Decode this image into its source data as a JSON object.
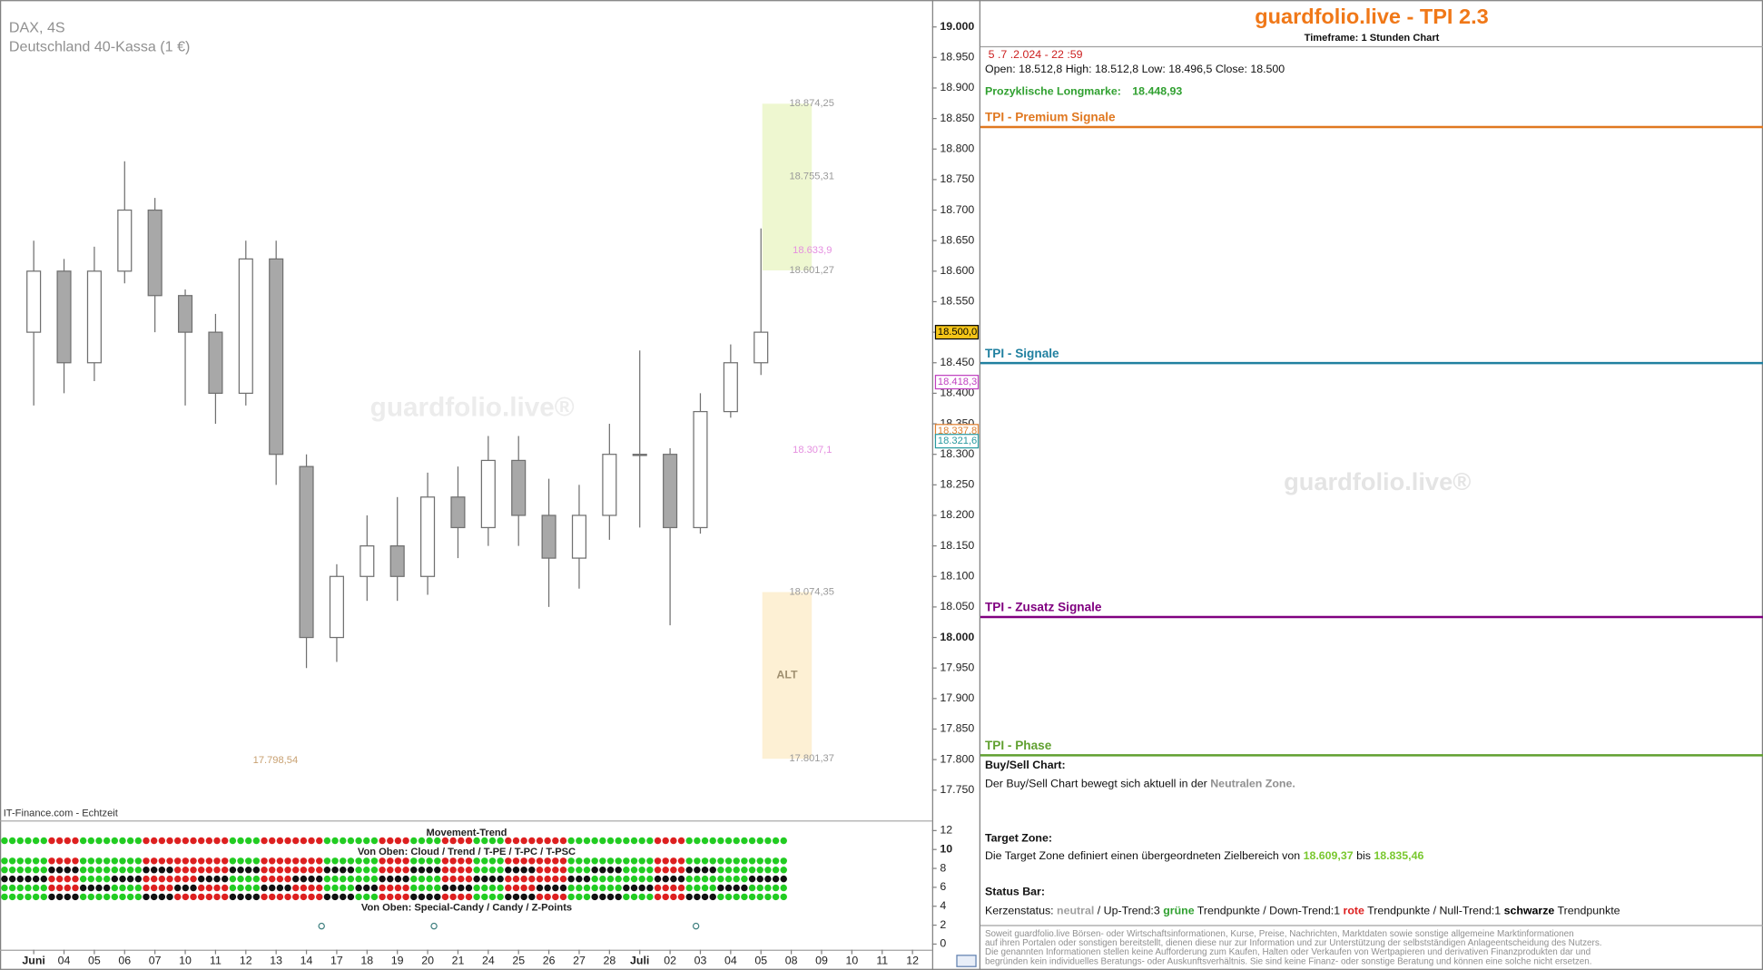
{
  "chart_data": {
    "type": "candlestick",
    "title": "DAX, 4S",
    "subtitle": "Deutschland 40-Kassa (1 €)",
    "source": "IT-Finance.com - Echtzeit",
    "watermark": "guardfolio.live®",
    "categories": [
      "Juni",
      "04",
      "05",
      "06",
      "07",
      "10",
      "11",
      "12",
      "13",
      "14",
      "17",
      "18",
      "19",
      "20",
      "21",
      "24",
      "25",
      "26",
      "27",
      "28",
      "Juli",
      "02",
      "03",
      "04",
      "05",
      "08",
      "09",
      "10",
      "11",
      "12"
    ],
    "open": [
      18500,
      18600,
      18450,
      18600,
      18700,
      18560,
      18500,
      18400,
      18620,
      18280,
      18000,
      18100,
      18150,
      18100,
      18230,
      18180,
      18290,
      18200,
      18130,
      18200,
      18300,
      18300,
      18180,
      18370,
      18450,
      null,
      null,
      null,
      null,
      null
    ],
    "high": [
      18650,
      18620,
      18640,
      18780,
      18720,
      18570,
      18530,
      18650,
      18650,
      18300,
      18120,
      18200,
      18230,
      18270,
      18280,
      18330,
      18330,
      18260,
      18250,
      18350,
      18470,
      18310,
      18400,
      18480,
      18670,
      null,
      null,
      null,
      null,
      null
    ],
    "low": [
      18380,
      18400,
      18420,
      18580,
      18500,
      18380,
      18350,
      18380,
      18250,
      17950,
      17960,
      18060,
      18060,
      18070,
      18130,
      18150,
      18150,
      18050,
      18080,
      18160,
      18180,
      18020,
      18170,
      18360,
      18430,
      null,
      null,
      null,
      null,
      null
    ],
    "close": [
      18600,
      18450,
      18600,
      18700,
      18560,
      18500,
      18400,
      18620,
      18300,
      18000,
      18100,
      18150,
      18100,
      18230,
      18180,
      18290,
      18200,
      18130,
      18200,
      18300,
      18300,
      18180,
      18370,
      18450,
      18500,
      null,
      null,
      null,
      null,
      null
    ],
    "up_color": "#ffffff",
    "down_color": "#a8a8a8",
    "ylim": [
      17704,
      19044
    ],
    "yticks": [
      {
        "value": 17750,
        "label": "17.750"
      },
      {
        "value": 17800,
        "label": "17.800"
      },
      {
        "value": 17850,
        "label": "17.850"
      },
      {
        "value": 17900,
        "label": "17.900"
      },
      {
        "value": 17950,
        "label": "17.950"
      },
      {
        "value": 18000,
        "label": "18.000"
      },
      {
        "value": 18050,
        "label": "18.050"
      },
      {
        "value": 18100,
        "label": "18.100"
      },
      {
        "value": 18150,
        "label": "18.150"
      },
      {
        "value": 18200,
        "label": "18.200"
      },
      {
        "value": 18250,
        "label": "18.250"
      },
      {
        "value": 18300,
        "label": "18.300"
      },
      {
        "value": 18350,
        "label": "18.350"
      },
      {
        "value": 18400,
        "label": "18.400"
      },
      {
        "value": 18450,
        "label": "18.450"
      },
      {
        "value": 18500,
        "label": "18.500"
      },
      {
        "value": 18550,
        "label": "18.550"
      },
      {
        "value": 18600,
        "label": "18.600"
      },
      {
        "value": 18650,
        "label": "18.650"
      },
      {
        "value": 18700,
        "label": "18.700"
      },
      {
        "value": 18750,
        "label": "18.750"
      },
      {
        "value": 18800,
        "label": "18.800"
      },
      {
        "value": 18850,
        "label": "18.850"
      },
      {
        "value": 18900,
        "label": "18.900"
      },
      {
        "value": 18950,
        "label": "18.950"
      },
      {
        "value": 19000,
        "label": "19.000"
      }
    ],
    "levels": [
      {
        "value": 18874.25,
        "label": "18.874,25",
        "color": "#9a9a9a"
      },
      {
        "value": 18755.31,
        "label": "18.755,31",
        "color": "#9a9a9a"
      },
      {
        "value": 18633.9,
        "label": "18.633,9",
        "color": "#e58fe0"
      },
      {
        "value": 18601.27,
        "label": "18.601,27",
        "color": "#9a9a9a"
      },
      {
        "value": 18307.1,
        "label": "18.307,1",
        "color": "#e58fe0"
      },
      {
        "value": 18074.35,
        "label": "18.074,35",
        "color": "#9a9a9a"
      },
      {
        "value": 17801.37,
        "label": "17.801,37",
        "color": "#9a9a9a"
      },
      {
        "value": 17798.54,
        "label": "17.798,54",
        "color": "#c8a070"
      }
    ],
    "zone_label": "ALT",
    "price_tags": [
      {
        "value": 18500,
        "label": "18.500,0",
        "color": "#000000",
        "fill": "#f5c518"
      },
      {
        "value": 18418.3,
        "label": "18.418,3",
        "color": "#c040c0",
        "fill": "#ffffff"
      },
      {
        "value": 18337.8,
        "label": "18.337,8",
        "color": "#e08030",
        "fill": "#ffffff"
      },
      {
        "value": 18321.6,
        "label": "18.321,6",
        "color": "#2a9aa0",
        "fill": "#ffffff"
      }
    ],
    "indicator": {
      "titles": [
        "Movement-Trend",
        "Von Oben: Cloud / Trend / T-PE / T-PC / T-PSC",
        "Von Oben: Special-Candy / Candy / Z-Points"
      ],
      "ylim": [
        0,
        12
      ],
      "yticks": [
        0,
        2,
        4,
        6,
        8,
        10,
        12
      ]
    }
  },
  "panel": {
    "title": "guardfolio.live - TPI 2.3",
    "timeframe": "Timeframe: 1 Stunden Chart",
    "timestamp": "5 .7 .2.024  - 22 :59",
    "ohlc": "Open: 18.512,8    High:  18.512,8     Low:   18.496,5     Close:   18.500",
    "longmark_label": "Prozyklische Longmarke:",
    "longmark_value": "18.448,93",
    "sections": [
      {
        "name": "TPI - Premium Signale",
        "color": "#e07820"
      },
      {
        "name": "TPI - Signale",
        "color": "#2080a0"
      },
      {
        "name": "TPI - Zusatz Signale",
        "color": "#800080"
      },
      {
        "name": "TPI - Phase",
        "color": "#60a030"
      }
    ],
    "buy_sell": {
      "heading": "Buy/Sell Chart:",
      "text": "Der Buy/Sell Chart bewegt sich aktuell in der ",
      "zone": "Neutralen Zone."
    },
    "target": {
      "heading": "Target Zone:",
      "text": "Die Target Zone definiert einen übergeordneten Zielbereich von ",
      "from": "18.609,37",
      "sep": " bis ",
      "to": "18.835,46"
    },
    "status": {
      "heading": "Status Bar:",
      "parts": [
        "Kerzenstatus: ",
        "neutral",
        "  / Up-Trend:3 ",
        "grüne",
        " Trendpunkte  / Down-Trend:1 ",
        "rote",
        " Trendpunkte / Null-Trend:1 ",
        "schwarze",
        " Trendpunkte"
      ]
    },
    "disclaimer": [
      "Soweit guardfolio.live Börsen- oder Wirtschaftsinformationen, Kurse, Preise, Nachrichten, Marktdaten sowie sonstige allgemeine Marktinformationen",
      "auf ihren Portalen oder sonstigen bereitstellt, dienen diese nur zur Information und zur Unterstützung der selbstständigen Anlageentscheidung des Nutzers.",
      "Die genannten Informationen stellen keine Aufforderung zum Kaufen, Halten oder Verkaufen von Wertpapieren und derivativen Finanzprodukten dar und",
      "begründen kein individuelles Beratungs- oder Auskunftsverhältnis. Sie sind keine Finanz- oder sonstige Beratung und können eine solche nicht ersetzen."
    ],
    "watermark": "guardfolio.live®"
  }
}
